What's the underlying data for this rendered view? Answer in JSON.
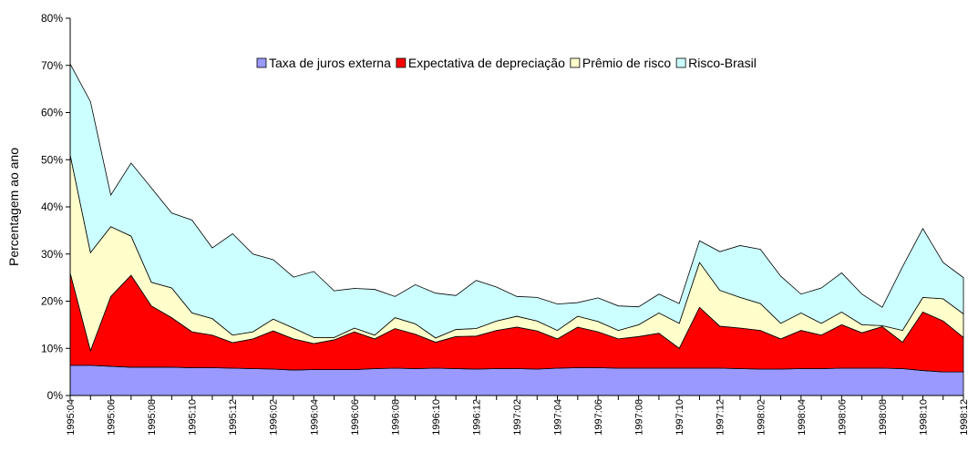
{
  "chart_data": {
    "type": "stacked_area",
    "y_label": "Percentagem ao ano",
    "categories": [
      "1995:04",
      null,
      "1995:06",
      null,
      "1995:08",
      null,
      "1995:10",
      null,
      "1995:12",
      null,
      "1996:02",
      null,
      "1996:04",
      null,
      "1996:06",
      null,
      "1996:08",
      null,
      "1996:10",
      null,
      "1996:12",
      null,
      "1997:02",
      null,
      "1997:04",
      null,
      "1997:06",
      null,
      "1997:08",
      null,
      "1997:10",
      null,
      "1997:12",
      null,
      "1998:02",
      null,
      "1998:04",
      null,
      "1998:06",
      null,
      "1998:08",
      null,
      "1998:10",
      null,
      "1998:12"
    ],
    "series": [
      {
        "name": "Taxa de juros externa",
        "color": "#9999ff",
        "values": [
          6.4,
          6.4,
          6.2,
          6.0,
          6.0,
          6.0,
          5.9,
          5.9,
          5.8,
          5.7,
          5.6,
          5.4,
          5.5,
          5.5,
          5.5,
          5.7,
          5.8,
          5.7,
          5.8,
          5.7,
          5.6,
          5.7,
          5.7,
          5.6,
          5.8,
          5.9,
          5.9,
          5.8,
          5.8,
          5.8,
          5.8,
          5.8,
          5.8,
          5.7,
          5.6,
          5.6,
          5.7,
          5.7,
          5.8,
          5.8,
          5.8,
          5.7,
          5.3,
          5.0,
          5.0
        ]
      },
      {
        "name": "Expectativa de depreciação",
        "color": "#ff0000",
        "values": [
          19.6,
          3.1,
          14.8,
          19.5,
          13,
          10.5,
          7.6,
          6.9,
          5.4,
          6.3,
          8.1,
          6.6,
          5.5,
          6.3,
          8,
          6.3,
          8.4,
          7.3,
          5.5,
          6.8,
          7,
          8.1,
          8.8,
          8.1,
          6.2,
          8.6,
          7.6,
          6.2,
          6.7,
          7.4,
          4.2,
          12.9,
          8.9,
          8.6,
          8.2,
          6.4,
          8.1,
          7.1,
          9.2,
          7.5,
          8.8,
          5.6,
          12.4,
          10.8,
          7.3
        ]
      },
      {
        "name": "Prêmio de risco",
        "color": "#ffffcc",
        "values": [
          25,
          20.8,
          14.8,
          8.3,
          5,
          6.3,
          4,
          3.5,
          1.6,
          1.5,
          2.5,
          2.3,
          1.3,
          0.5,
          0.8,
          0.8,
          2.3,
          2.2,
          0.9,
          1.5,
          1.6,
          2,
          2.3,
          2.1,
          1.8,
          2.3,
          2.2,
          1.8,
          2.5,
          4.3,
          5.3,
          9.5,
          7.6,
          6.5,
          5.7,
          3.3,
          3.7,
          2.5,
          2.7,
          1.7,
          0.2,
          2.5,
          3.1,
          4.7,
          5
        ]
      },
      {
        "name": "Risco-Brasil",
        "color": "#ccffff",
        "values": [
          19.3,
          32,
          6.7,
          15.5,
          20,
          15.9,
          19.7,
          15,
          21.5,
          16.5,
          12.6,
          10.8,
          14,
          9.9,
          8.4,
          9.7,
          4.5,
          8.3,
          9.5,
          7.2,
          10.2,
          7.2,
          4.2,
          5,
          5.6,
          2.9,
          5,
          5.2,
          3.8,
          4,
          4.2,
          4.6,
          8.2,
          11,
          11.5,
          10,
          4,
          7.5,
          8.3,
          6.5,
          3.9,
          13.5,
          14.6,
          7.7,
          7.7
        ]
      }
    ],
    "ylim": [
      0,
      80
    ],
    "yticks": [
      {
        "value": 0,
        "label": "0%"
      },
      {
        "value": 10,
        "label": "10%"
      },
      {
        "value": 20,
        "label": "20%"
      },
      {
        "value": 30,
        "label": "30%"
      },
      {
        "value": 40,
        "label": "40%"
      },
      {
        "value": 50,
        "label": "50%"
      },
      {
        "value": 60,
        "label": "60%"
      },
      {
        "value": 70,
        "label": "70%"
      },
      {
        "value": 80,
        "label": "80%"
      }
    ],
    "legend": "top",
    "grid": false
  }
}
